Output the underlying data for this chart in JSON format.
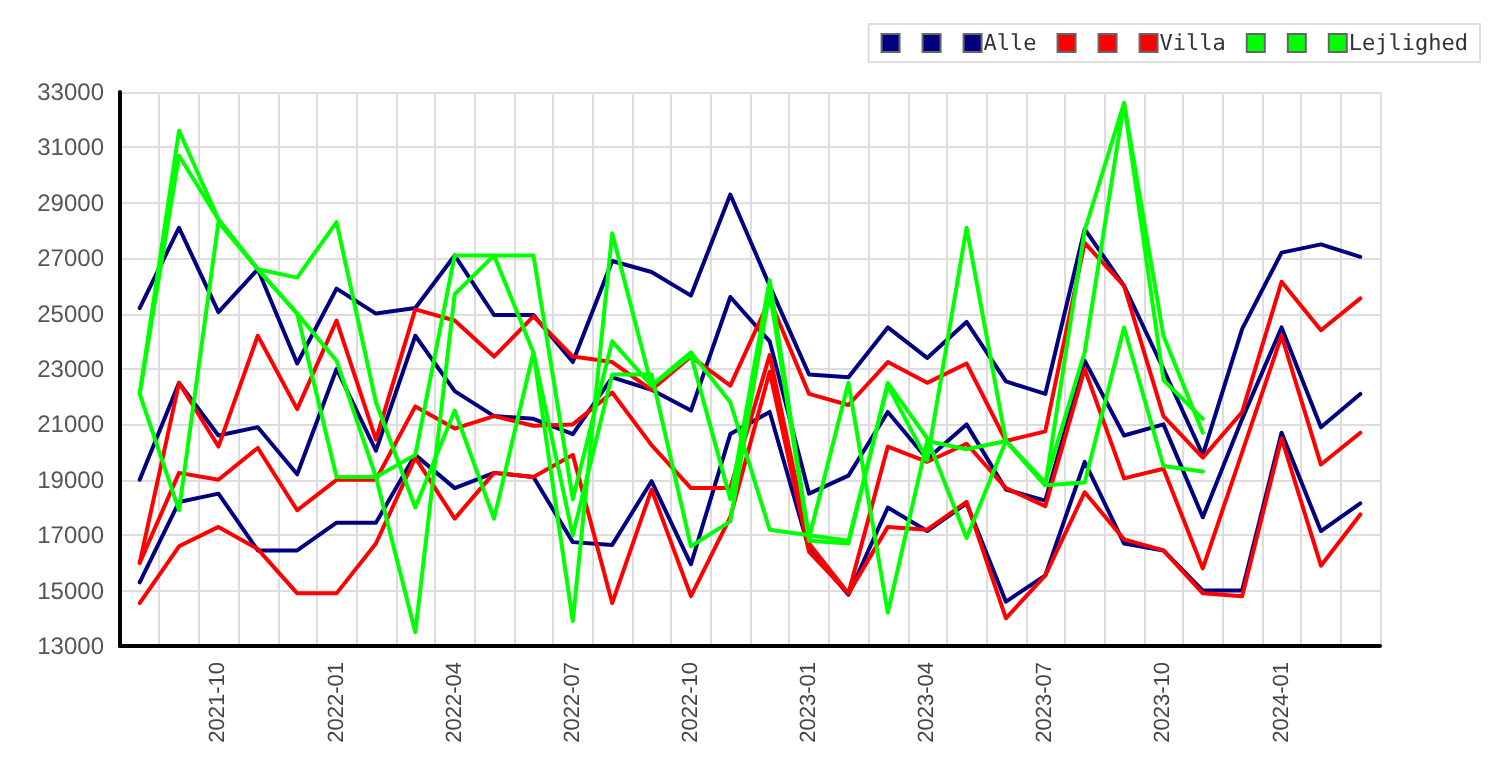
{
  "chart_data": {
    "type": "line",
    "categories": [
      null,
      null,
      "2021-10",
      null,
      null,
      "2022-01",
      null,
      null,
      "2022-04",
      null,
      null,
      "2022-07",
      null,
      null,
      "2022-10",
      null,
      null,
      "2023-01",
      null,
      null,
      "2023-04",
      null,
      null,
      "2023-07",
      null,
      null,
      "2023-10",
      null,
      null,
      "2024-01",
      null,
      null
    ],
    "series": [
      {
        "color": "#000080",
        "values": [
          25200,
          28100,
          25050,
          26600,
          23200,
          25900,
          25000,
          25200,
          27100,
          24950,
          24950,
          23250,
          26900,
          26500,
          25650,
          29300,
          26000,
          22800,
          22700,
          24500,
          23400,
          24700,
          22550,
          22100,
          28050,
          26000,
          23000,
          19900,
          24450,
          27200,
          27500,
          27050
        ]
      },
      {
        "color": "#000080",
        "values": [
          19000,
          22500,
          20600,
          20900,
          19200,
          23000,
          20050,
          24200,
          22200,
          21300,
          21200,
          20650,
          22700,
          22250,
          21500,
          25600,
          24000,
          18500,
          19150,
          21450,
          19750,
          21000,
          18650,
          18250,
          23300,
          20600,
          21000,
          17650,
          21200,
          24500,
          20900,
          22100
        ]
      },
      {
        "name": "Alle",
        "color": "#000080",
        "values": [
          15300,
          18200,
          18500,
          16450,
          16450,
          17450,
          17450,
          19900,
          18700,
          19250,
          19100,
          16750,
          16650,
          18950,
          15950,
          20650,
          21450,
          16500,
          14850,
          18000,
          17150,
          18150,
          14600,
          15550,
          19650,
          16700,
          16450,
          15000,
          15000,
          20700,
          17150,
          18150
        ]
      },
      {
        "color": "#ff0000",
        "values": [
          16000,
          22500,
          20200,
          24200,
          21550,
          24750,
          20450,
          25150,
          24750,
          23450,
          24900,
          23450,
          23250,
          22250,
          23450,
          22400,
          25500,
          22100,
          21700,
          23250,
          22500,
          23200,
          20400,
          20750,
          27550,
          26000,
          21300,
          19800,
          21450,
          26150,
          24400,
          25550
        ]
      },
      {
        "color": "#ff0000",
        "values": [
          16000,
          19250,
          19000,
          20150,
          17900,
          19000,
          19000,
          21650,
          20850,
          21300,
          20950,
          21000,
          22150,
          20250,
          18700,
          18700,
          23500,
          16700,
          14900,
          20200,
          19650,
          20300,
          18700,
          18050,
          23000,
          19050,
          19400,
          15800,
          20000,
          24200,
          19550,
          20700
        ]
      },
      {
        "name": "Villa",
        "color": "#ff0000",
        "values": [
          14550,
          16600,
          17300,
          16500,
          14900,
          14900,
          16700,
          19800,
          17600,
          19250,
          19100,
          19900,
          14550,
          18650,
          14800,
          17650,
          22900,
          16400,
          14900,
          17300,
          17200,
          18200,
          14000,
          15550,
          18550,
          16850,
          16450,
          14900,
          14800,
          20500,
          15900,
          17750
        ]
      },
      {
        "color": "#00ff00",
        "values": [
          22100,
          31600,
          28400,
          26600,
          26300,
          28300,
          21800,
          18000,
          21500,
          17600,
          23600,
          13900,
          27900,
          22400,
          23500,
          18300,
          26200,
          16900,
          22500,
          14200,
          20400,
          20100,
          20400,
          18800,
          18900,
          24500,
          19500,
          19300,
          null,
          null,
          null,
          null
        ]
      },
      {
        "color": "#00ff00",
        "values": [
          22100,
          30700,
          28400,
          26600,
          25000,
          23300,
          19100,
          13500,
          25700,
          27100,
          27100,
          18300,
          24000,
          22400,
          23600,
          21800,
          17200,
          17000,
          16800,
          22400,
          19700,
          28100,
          20400,
          18900,
          23600,
          32600,
          24200,
          20700,
          null,
          null,
          null,
          null
        ]
      },
      {
        "name": "Lejlighed",
        "color": "#00ff00",
        "values": [
          22100,
          17900,
          28300,
          26600,
          25000,
          19100,
          19100,
          19900,
          27100,
          27100,
          23600,
          17000,
          22800,
          22800,
          16600,
          17500,
          25800,
          16800,
          16700,
          22500,
          20500,
          16900,
          20400,
          18800,
          28000,
          32600,
          22600,
          21200,
          null,
          null,
          null,
          null
        ]
      }
    ],
    "ylim": [
      13000,
      33000
    ],
    "yticks": [
      13000,
      15000,
      17000,
      19000,
      21000,
      23000,
      25000,
      27000,
      29000,
      31000,
      33000
    ],
    "grid": true,
    "legend": "top right",
    "marker": "none",
    "line_style": "solid"
  }
}
